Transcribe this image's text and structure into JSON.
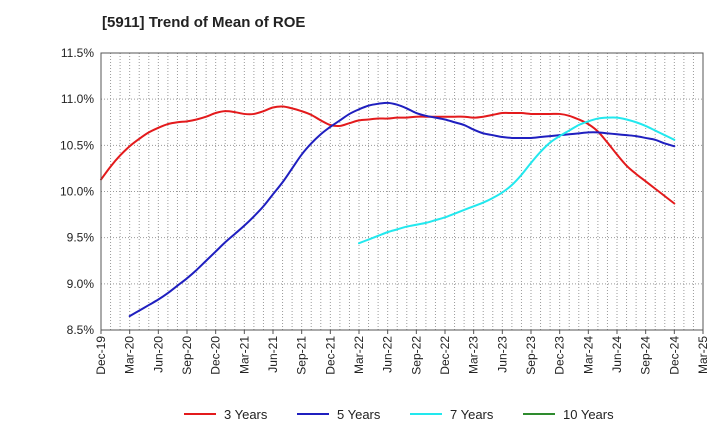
{
  "chart_data": {
    "type": "line",
    "title": "[5911]  Trend of Mean of ROE",
    "xlabel": "",
    "ylabel": "",
    "x_ticks": [
      "Dec-19",
      "Mar-20",
      "Jun-20",
      "Sep-20",
      "Dec-20",
      "Mar-21",
      "Jun-21",
      "Sep-21",
      "Dec-21",
      "Mar-22",
      "Jun-22",
      "Sep-22",
      "Dec-22",
      "Mar-23",
      "Jun-23",
      "Sep-23",
      "Dec-23",
      "Mar-24",
      "Jun-24",
      "Sep-24",
      "Dec-24",
      "Mar-25"
    ],
    "y_ticks": [
      "8.5%",
      "9.0%",
      "9.5%",
      "10.0%",
      "10.5%",
      "11.0%",
      "11.5%"
    ],
    "ylim": [
      8.5,
      11.5
    ],
    "grid": true,
    "legend_position": "bottom",
    "series": [
      {
        "name": "3 Years",
        "color": "#e31a1c",
        "points": [
          [
            "Dec-19",
            10.13
          ],
          [
            "Jan-20",
            10.27
          ],
          [
            "Feb-20",
            10.39
          ],
          [
            "Mar-20",
            10.49
          ],
          [
            "Apr-20",
            10.57
          ],
          [
            "May-20",
            10.64
          ],
          [
            "Jun-20",
            10.69
          ],
          [
            "Jul-20",
            10.73
          ],
          [
            "Aug-20",
            10.75
          ],
          [
            "Sep-20",
            10.76
          ],
          [
            "Oct-20",
            10.78
          ],
          [
            "Nov-20",
            10.81
          ],
          [
            "Dec-20",
            10.85
          ],
          [
            "Jan-21",
            10.87
          ],
          [
            "Feb-21",
            10.86
          ],
          [
            "Mar-21",
            10.84
          ],
          [
            "Apr-21",
            10.84
          ],
          [
            "May-21",
            10.87
          ],
          [
            "Jun-21",
            10.91
          ],
          [
            "Jul-21",
            10.92
          ],
          [
            "Aug-21",
            10.9
          ],
          [
            "Sep-21",
            10.87
          ],
          [
            "Oct-21",
            10.83
          ],
          [
            "Nov-21",
            10.77
          ],
          [
            "Dec-21",
            10.72
          ],
          [
            "Jan-22",
            10.71
          ],
          [
            "Feb-22",
            10.74
          ],
          [
            "Mar-22",
            10.77
          ],
          [
            "Apr-22",
            10.78
          ],
          [
            "May-22",
            10.79
          ],
          [
            "Jun-22",
            10.79
          ],
          [
            "Jul-22",
            10.8
          ],
          [
            "Aug-22",
            10.8
          ],
          [
            "Sep-22",
            10.81
          ],
          [
            "Oct-22",
            10.81
          ],
          [
            "Nov-22",
            10.81
          ],
          [
            "Dec-22",
            10.81
          ],
          [
            "Jan-23",
            10.81
          ],
          [
            "Feb-23",
            10.81
          ],
          [
            "Mar-23",
            10.8
          ],
          [
            "Apr-23",
            10.81
          ],
          [
            "May-23",
            10.83
          ],
          [
            "Jun-23",
            10.85
          ],
          [
            "Jul-23",
            10.85
          ],
          [
            "Aug-23",
            10.85
          ],
          [
            "Sep-23",
            10.84
          ],
          [
            "Oct-23",
            10.84
          ],
          [
            "Nov-23",
            10.84
          ],
          [
            "Dec-23",
            10.84
          ],
          [
            "Jan-24",
            10.82
          ],
          [
            "Feb-24",
            10.78
          ],
          [
            "Mar-24",
            10.73
          ],
          [
            "Apr-24",
            10.65
          ],
          [
            "May-24",
            10.53
          ],
          [
            "Jun-24",
            10.4
          ],
          [
            "Jul-24",
            10.28
          ],
          [
            "Aug-24",
            10.19
          ],
          [
            "Sep-24",
            10.11
          ],
          [
            "Oct-24",
            10.03
          ],
          [
            "Nov-24",
            9.95
          ],
          [
            "Dec-24",
            9.87
          ]
        ]
      },
      {
        "name": "5 Years",
        "color": "#1f1fbf",
        "points": [
          [
            "Mar-20",
            8.65
          ],
          [
            "Apr-20",
            8.71
          ],
          [
            "May-20",
            8.77
          ],
          [
            "Jun-20",
            8.83
          ],
          [
            "Jul-20",
            8.9
          ],
          [
            "Aug-20",
            8.98
          ],
          [
            "Sep-20",
            9.06
          ],
          [
            "Oct-20",
            9.15
          ],
          [
            "Nov-20",
            9.25
          ],
          [
            "Dec-20",
            9.35
          ],
          [
            "Jan-21",
            9.45
          ],
          [
            "Feb-21",
            9.54
          ],
          [
            "Mar-21",
            9.63
          ],
          [
            "Apr-21",
            9.73
          ],
          [
            "May-21",
            9.84
          ],
          [
            "Jun-21",
            9.97
          ],
          [
            "Jul-21",
            10.1
          ],
          [
            "Aug-21",
            10.25
          ],
          [
            "Sep-21",
            10.4
          ],
          [
            "Oct-21",
            10.52
          ],
          [
            "Nov-21",
            10.62
          ],
          [
            "Dec-21",
            10.7
          ],
          [
            "Jan-22",
            10.77
          ],
          [
            "Feb-22",
            10.84
          ],
          [
            "Mar-22",
            10.89
          ],
          [
            "Apr-22",
            10.93
          ],
          [
            "May-22",
            10.95
          ],
          [
            "Jun-22",
            10.96
          ],
          [
            "Jul-22",
            10.94
          ],
          [
            "Aug-22",
            10.9
          ],
          [
            "Sep-22",
            10.85
          ],
          [
            "Oct-22",
            10.82
          ],
          [
            "Nov-22",
            10.8
          ],
          [
            "Dec-22",
            10.78
          ],
          [
            "Jan-23",
            10.75
          ],
          [
            "Feb-23",
            10.72
          ],
          [
            "Mar-23",
            10.67
          ],
          [
            "Apr-23",
            10.63
          ],
          [
            "May-23",
            10.61
          ],
          [
            "Jun-23",
            10.59
          ],
          [
            "Jul-23",
            10.58
          ],
          [
            "Aug-23",
            10.58
          ],
          [
            "Sep-23",
            10.58
          ],
          [
            "Oct-23",
            10.59
          ],
          [
            "Nov-23",
            10.6
          ],
          [
            "Dec-23",
            10.61
          ],
          [
            "Jan-24",
            10.62
          ],
          [
            "Feb-24",
            10.63
          ],
          [
            "Mar-24",
            10.64
          ],
          [
            "Apr-24",
            10.64
          ],
          [
            "May-24",
            10.63
          ],
          [
            "Jun-24",
            10.62
          ],
          [
            "Jul-24",
            10.61
          ],
          [
            "Aug-24",
            10.6
          ],
          [
            "Sep-24",
            10.58
          ],
          [
            "Oct-24",
            10.56
          ],
          [
            "Nov-24",
            10.52
          ],
          [
            "Dec-24",
            10.49
          ]
        ]
      },
      {
        "name": "7 Years",
        "color": "#22e8ee",
        "points": [
          [
            "Mar-22",
            9.44
          ],
          [
            "Apr-22",
            9.48
          ],
          [
            "May-22",
            9.52
          ],
          [
            "Jun-22",
            9.56
          ],
          [
            "Jul-22",
            9.59
          ],
          [
            "Aug-22",
            9.62
          ],
          [
            "Sep-22",
            9.64
          ],
          [
            "Oct-22",
            9.66
          ],
          [
            "Nov-22",
            9.69
          ],
          [
            "Dec-22",
            9.72
          ],
          [
            "Jan-23",
            9.76
          ],
          [
            "Feb-23",
            9.8
          ],
          [
            "Mar-23",
            9.84
          ],
          [
            "Apr-23",
            9.88
          ],
          [
            "May-23",
            9.93
          ],
          [
            "Jun-23",
            9.99
          ],
          [
            "Jul-23",
            10.07
          ],
          [
            "Aug-23",
            10.18
          ],
          [
            "Sep-23",
            10.31
          ],
          [
            "Oct-23",
            10.43
          ],
          [
            "Nov-23",
            10.53
          ],
          [
            "Dec-23",
            10.6
          ],
          [
            "Jan-24",
            10.66
          ],
          [
            "Feb-24",
            10.72
          ],
          [
            "Mar-24",
            10.76
          ],
          [
            "Apr-24",
            10.79
          ],
          [
            "May-24",
            10.8
          ],
          [
            "Jun-24",
            10.8
          ],
          [
            "Jul-24",
            10.78
          ],
          [
            "Aug-24",
            10.75
          ],
          [
            "Sep-24",
            10.71
          ],
          [
            "Oct-24",
            10.66
          ],
          [
            "Nov-24",
            10.61
          ],
          [
            "Dec-24",
            10.56
          ]
        ]
      },
      {
        "name": "10 Years",
        "color": "#2e8b2e",
        "points": []
      }
    ]
  }
}
